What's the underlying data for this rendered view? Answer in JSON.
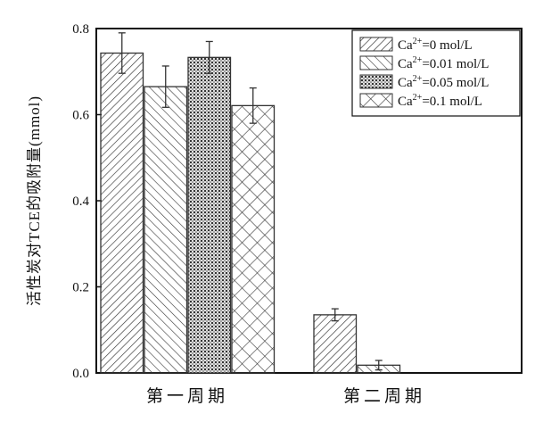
{
  "chart_data": {
    "type": "bar",
    "title": "",
    "xlabel": "",
    "ylabel": "活性炭对TCE的吸附量(mmol)",
    "ylim": [
      0,
      0.8
    ],
    "yticks": [
      "0.0",
      "0.2",
      "0.4",
      "0.6",
      "0.8"
    ],
    "grid": false,
    "legend_position": "top-right",
    "categories": [
      "第一周期",
      "第二周期"
    ],
    "series": [
      {
        "name": "Ca2+=0 mol/L",
        "label_base": "Ca",
        "label_sup": "2+",
        "label_rest": "=0 mol/L",
        "pattern": "diagonal-up-dense",
        "values": [
          0.743,
          0.135
        ],
        "errors": [
          0.047,
          0.014
        ]
      },
      {
        "name": "Ca2+=0.01 mol/L",
        "label_base": "Ca",
        "label_sup": "2+",
        "label_rest": "=0.01 mol/L",
        "pattern": "diagonal-down",
        "values": [
          0.665,
          0.018
        ],
        "errors": [
          0.048,
          0.011
        ]
      },
      {
        "name": "Ca2+=0.05 mol/L",
        "label_base": "Ca",
        "label_sup": "2+",
        "label_rest": "=0.05 mol/L",
        "pattern": "dense-crosshatch",
        "values": [
          0.733,
          0
        ],
        "errors": [
          0.037,
          0
        ]
      },
      {
        "name": "Ca2+=0.1 mol/L",
        "label_base": "Ca",
        "label_sup": "2+",
        "label_rest": "=0.1 mol/L",
        "pattern": "crosshatch",
        "values": [
          0.621,
          0
        ],
        "errors": [
          0.041,
          0
        ]
      }
    ],
    "colors": {
      "stroke": "#333333",
      "background": "#ffffff"
    }
  }
}
